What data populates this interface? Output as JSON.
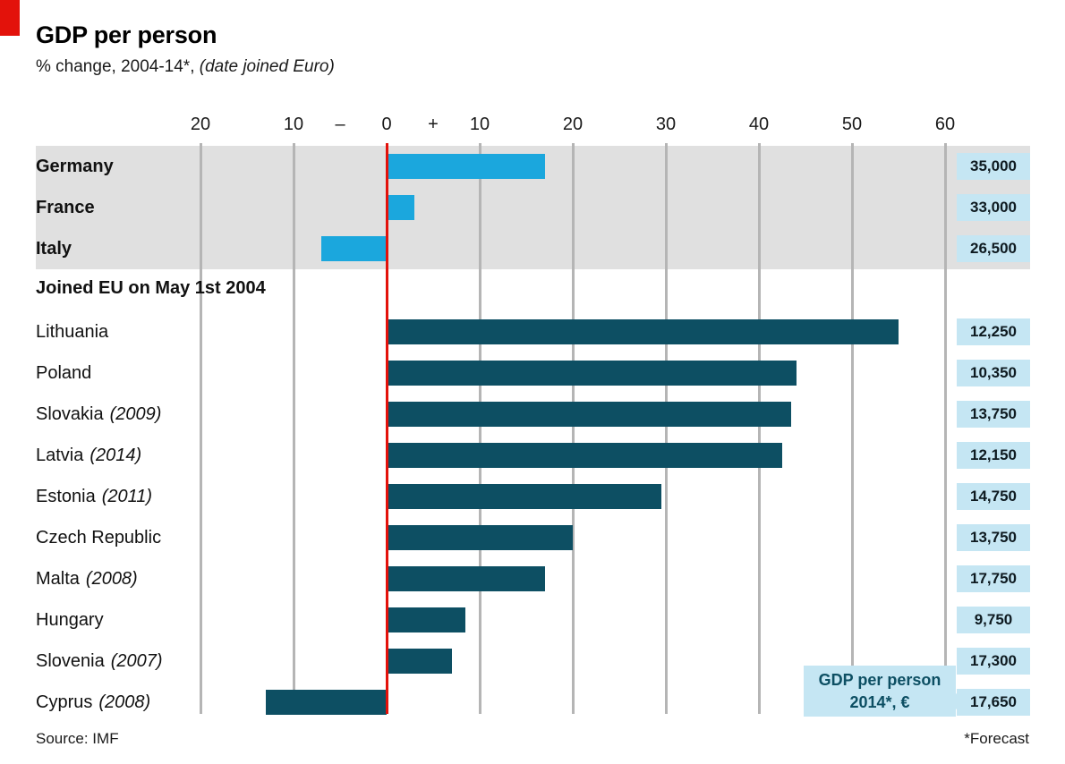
{
  "chart_data": {
    "type": "bar",
    "orientation": "horizontal",
    "title": "GDP per person",
    "subtitle_plain": "% change, 2004-14*, ",
    "subtitle_italic": "(date joined Euro)",
    "xlim": [
      -25,
      65
    ],
    "ticks": [
      -20,
      -10,
      0,
      10,
      20,
      30,
      40,
      50,
      60
    ],
    "minus_sign": "–",
    "plus_sign": "+",
    "value_column_label": {
      "line1": "GDP per person",
      "line2": "2014*, €"
    },
    "groups": [
      {
        "id": "euro-area-founders",
        "label": "",
        "band": true,
        "bar_color": "light",
        "rows": [
          {
            "country": "Germany",
            "note": "",
            "change_pct": 17,
            "gdp_2014_eur": "35,000"
          },
          {
            "country": "France",
            "note": "",
            "change_pct": 3,
            "gdp_2014_eur": "33,000"
          },
          {
            "country": "Italy",
            "note": "",
            "change_pct": -7,
            "gdp_2014_eur": "26,500"
          }
        ]
      },
      {
        "id": "joined-eu-2004",
        "label": "Joined EU on May 1st 2004",
        "band": false,
        "bar_color": "dark",
        "rows": [
          {
            "country": "Lithuania",
            "note": "",
            "change_pct": 55,
            "gdp_2014_eur": "12,250"
          },
          {
            "country": "Poland",
            "note": "",
            "change_pct": 44,
            "gdp_2014_eur": "10,350"
          },
          {
            "country": "Slovakia",
            "note": "(2009)",
            "change_pct": 43.5,
            "gdp_2014_eur": "13,750"
          },
          {
            "country": "Latvia",
            "note": "(2014)",
            "change_pct": 42.5,
            "gdp_2014_eur": "12,150"
          },
          {
            "country": "Estonia",
            "note": "(2011)",
            "change_pct": 29.5,
            "gdp_2014_eur": "14,750"
          },
          {
            "country": "Czech Republic",
            "note": "",
            "change_pct": 20,
            "gdp_2014_eur": "13,750"
          },
          {
            "country": "Malta",
            "note": "(2008)",
            "change_pct": 17,
            "gdp_2014_eur": "17,750"
          },
          {
            "country": "Hungary",
            "note": "",
            "change_pct": 8.5,
            "gdp_2014_eur": "9,750"
          },
          {
            "country": "Slovenia",
            "note": "(2007)",
            "change_pct": 7,
            "gdp_2014_eur": "17,300"
          },
          {
            "country": "Cyprus",
            "note": "(2008)",
            "change_pct": -13,
            "gdp_2014_eur": "17,650"
          }
        ]
      }
    ]
  },
  "footer": {
    "source": "Source: IMF",
    "footnote": "*Forecast"
  },
  "colors": {
    "accent_red": "#e3120b",
    "bar_light_blue": "#1ba7dd",
    "bar_dark_teal": "#0d4f63",
    "band_grey": "#e0e0e0",
    "badge_light_blue": "#c5e6f3",
    "grid_grey": "#b5b5b5",
    "text": "#111111"
  }
}
